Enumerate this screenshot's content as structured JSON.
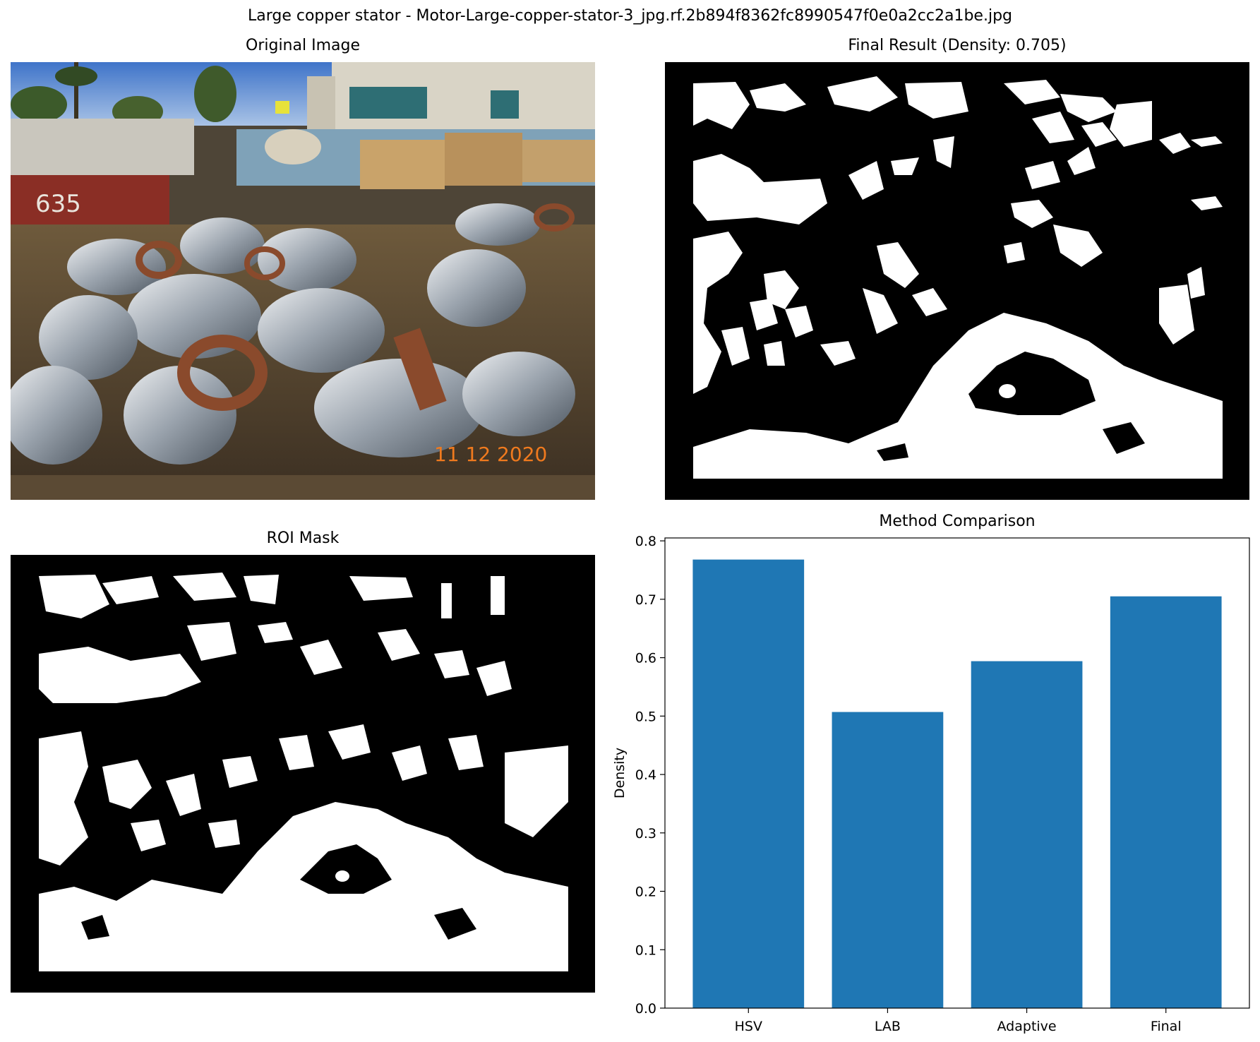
{
  "suptitle": "Large copper stator - Motor-Large-copper-stator-3_jpg.rf.2b894f8362fc8990547f0e0a2cc2a1be.jpg",
  "panels": {
    "original": {
      "title": "Original Image",
      "date_stamp": "11 12 2020",
      "bin_label": "635"
    },
    "final": {
      "title": "Final Result (Density: 0.705)"
    },
    "roi": {
      "title": "ROI Mask"
    },
    "comparison": {
      "title": "Method Comparison"
    }
  },
  "colors": {
    "bar": "#1f77b4",
    "mask_bg": "#000000",
    "mask_fg": "#ffffff"
  },
  "chart_data": {
    "type": "bar",
    "title": "Method Comparison",
    "xlabel": "",
    "ylabel": "Density",
    "categories": [
      "HSV",
      "LAB",
      "Adaptive",
      "Final"
    ],
    "values": [
      0.768,
      0.507,
      0.594,
      0.705
    ],
    "ylim": [
      0,
      0.805
    ],
    "yticks": [
      0.0,
      0.1,
      0.2,
      0.3,
      0.4,
      0.5,
      0.6,
      0.7,
      0.8
    ],
    "grid": false
  }
}
